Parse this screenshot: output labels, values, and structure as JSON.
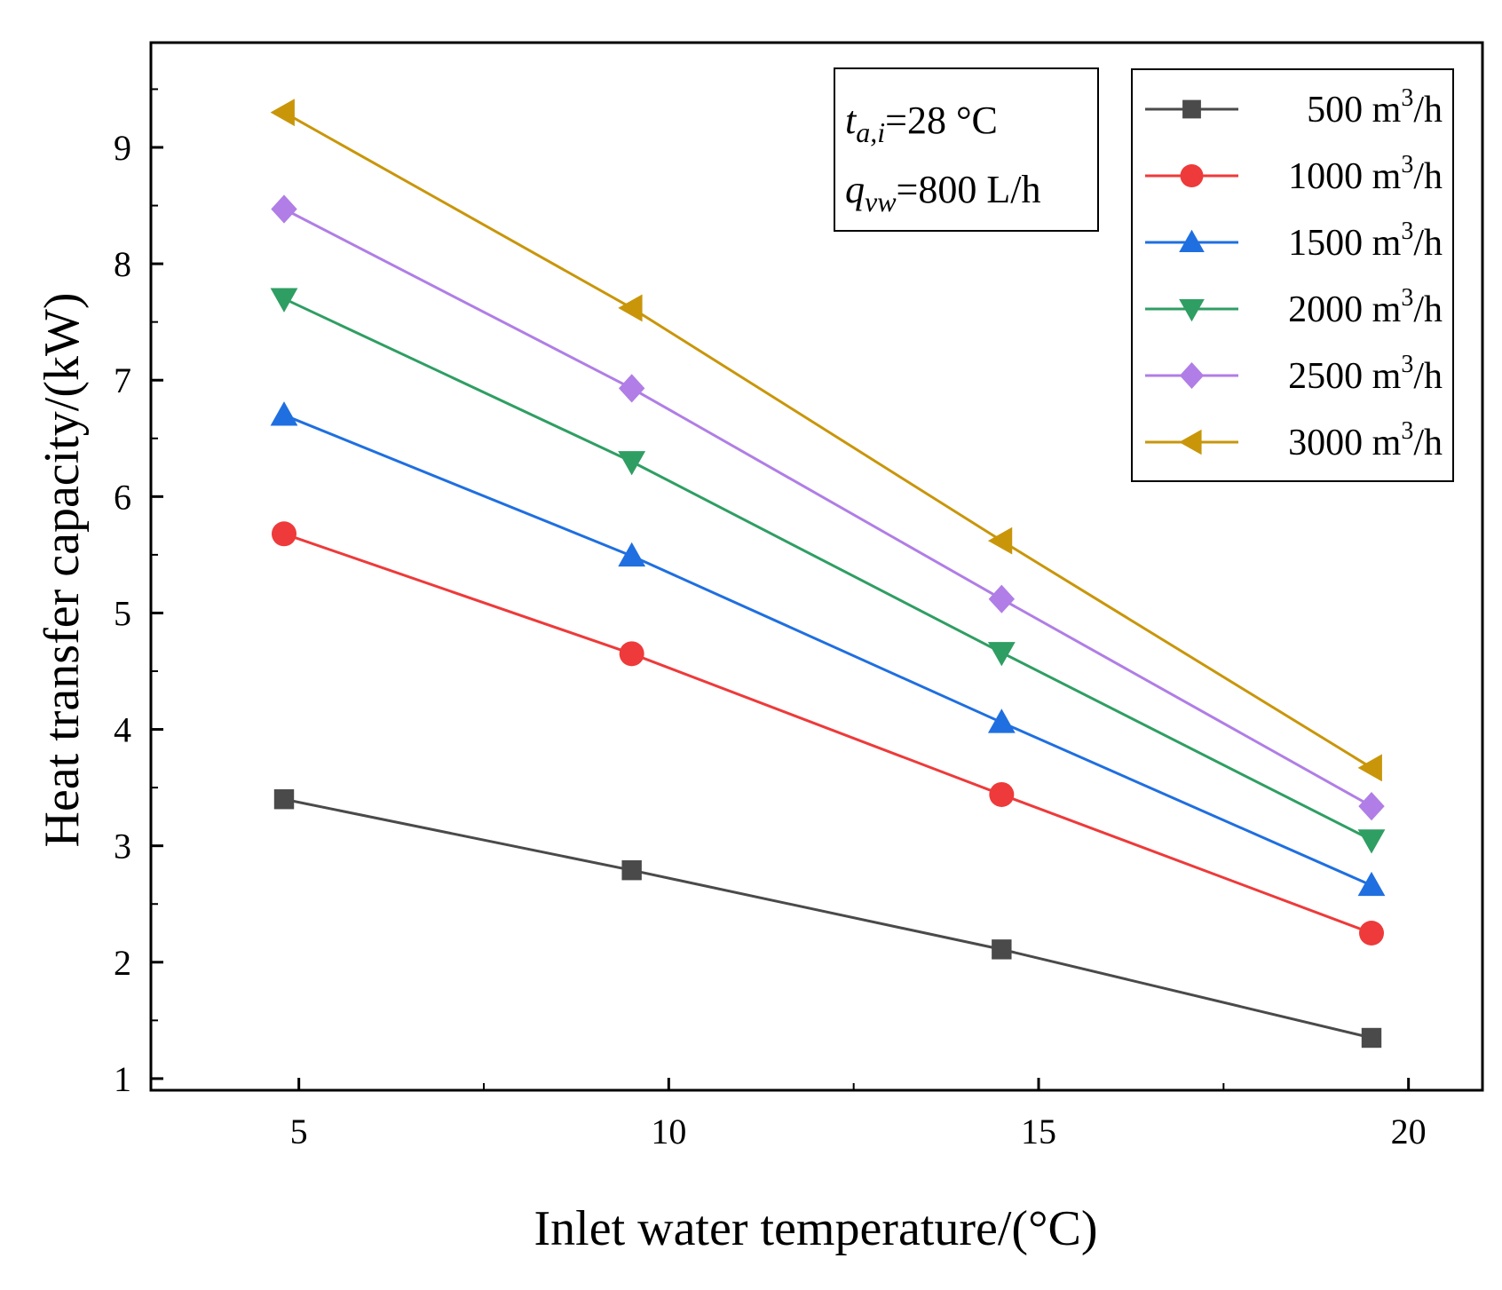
{
  "chart_data": {
    "type": "line",
    "title": "",
    "xlabel": "Inlet water temperature/(°C)",
    "ylabel": "Heat transfer capacity/(kW)",
    "xlim": [
      3,
      21
    ],
    "ylim": [
      0.9,
      9.9
    ],
    "xticks": [
      5,
      10,
      15,
      20
    ],
    "yticks": [
      1,
      2,
      3,
      4,
      5,
      6,
      7,
      8,
      9
    ],
    "x": [
      4.8,
      9.5,
      14.5,
      19.5
    ],
    "conditions": {
      "line1": {
        "var": "t",
        "sub": "a,i",
        "value": "=28 °C"
      },
      "line2": {
        "var": "q",
        "sub": "vw",
        "value": "=800 L/h"
      }
    },
    "legend_position": "top-right",
    "series": [
      {
        "name": "500 m",
        "unit_exp": "3",
        "unit_tail": "/h",
        "color": "#4a4a4a",
        "marker": "square",
        "values": [
          3.4,
          2.79,
          2.11,
          1.35
        ]
      },
      {
        "name": "1000 m",
        "unit_exp": "3",
        "unit_tail": "/h",
        "color": "#ee3a3a",
        "marker": "circle",
        "values": [
          5.68,
          4.65,
          3.44,
          2.25
        ]
      },
      {
        "name": "1500 m",
        "unit_exp": "3",
        "unit_tail": "/h",
        "color": "#1f6fe0",
        "marker": "triangle-up",
        "values": [
          6.7,
          5.49,
          4.06,
          2.66
        ]
      },
      {
        "name": "2000 m",
        "unit_exp": "3",
        "unit_tail": "/h",
        "color": "#2f9e63",
        "marker": "triangle-down",
        "values": [
          7.7,
          6.3,
          4.66,
          3.05
        ]
      },
      {
        "name": "2500 m",
        "unit_exp": "3",
        "unit_tail": "/h",
        "color": "#b07ee6",
        "marker": "diamond",
        "values": [
          8.47,
          6.93,
          5.12,
          3.34
        ]
      },
      {
        "name": "3000 m",
        "unit_exp": "3",
        "unit_tail": "/h",
        "color": "#c9960a",
        "marker": "triangle-left",
        "values": [
          9.3,
          7.62,
          5.62,
          3.67
        ]
      }
    ]
  }
}
